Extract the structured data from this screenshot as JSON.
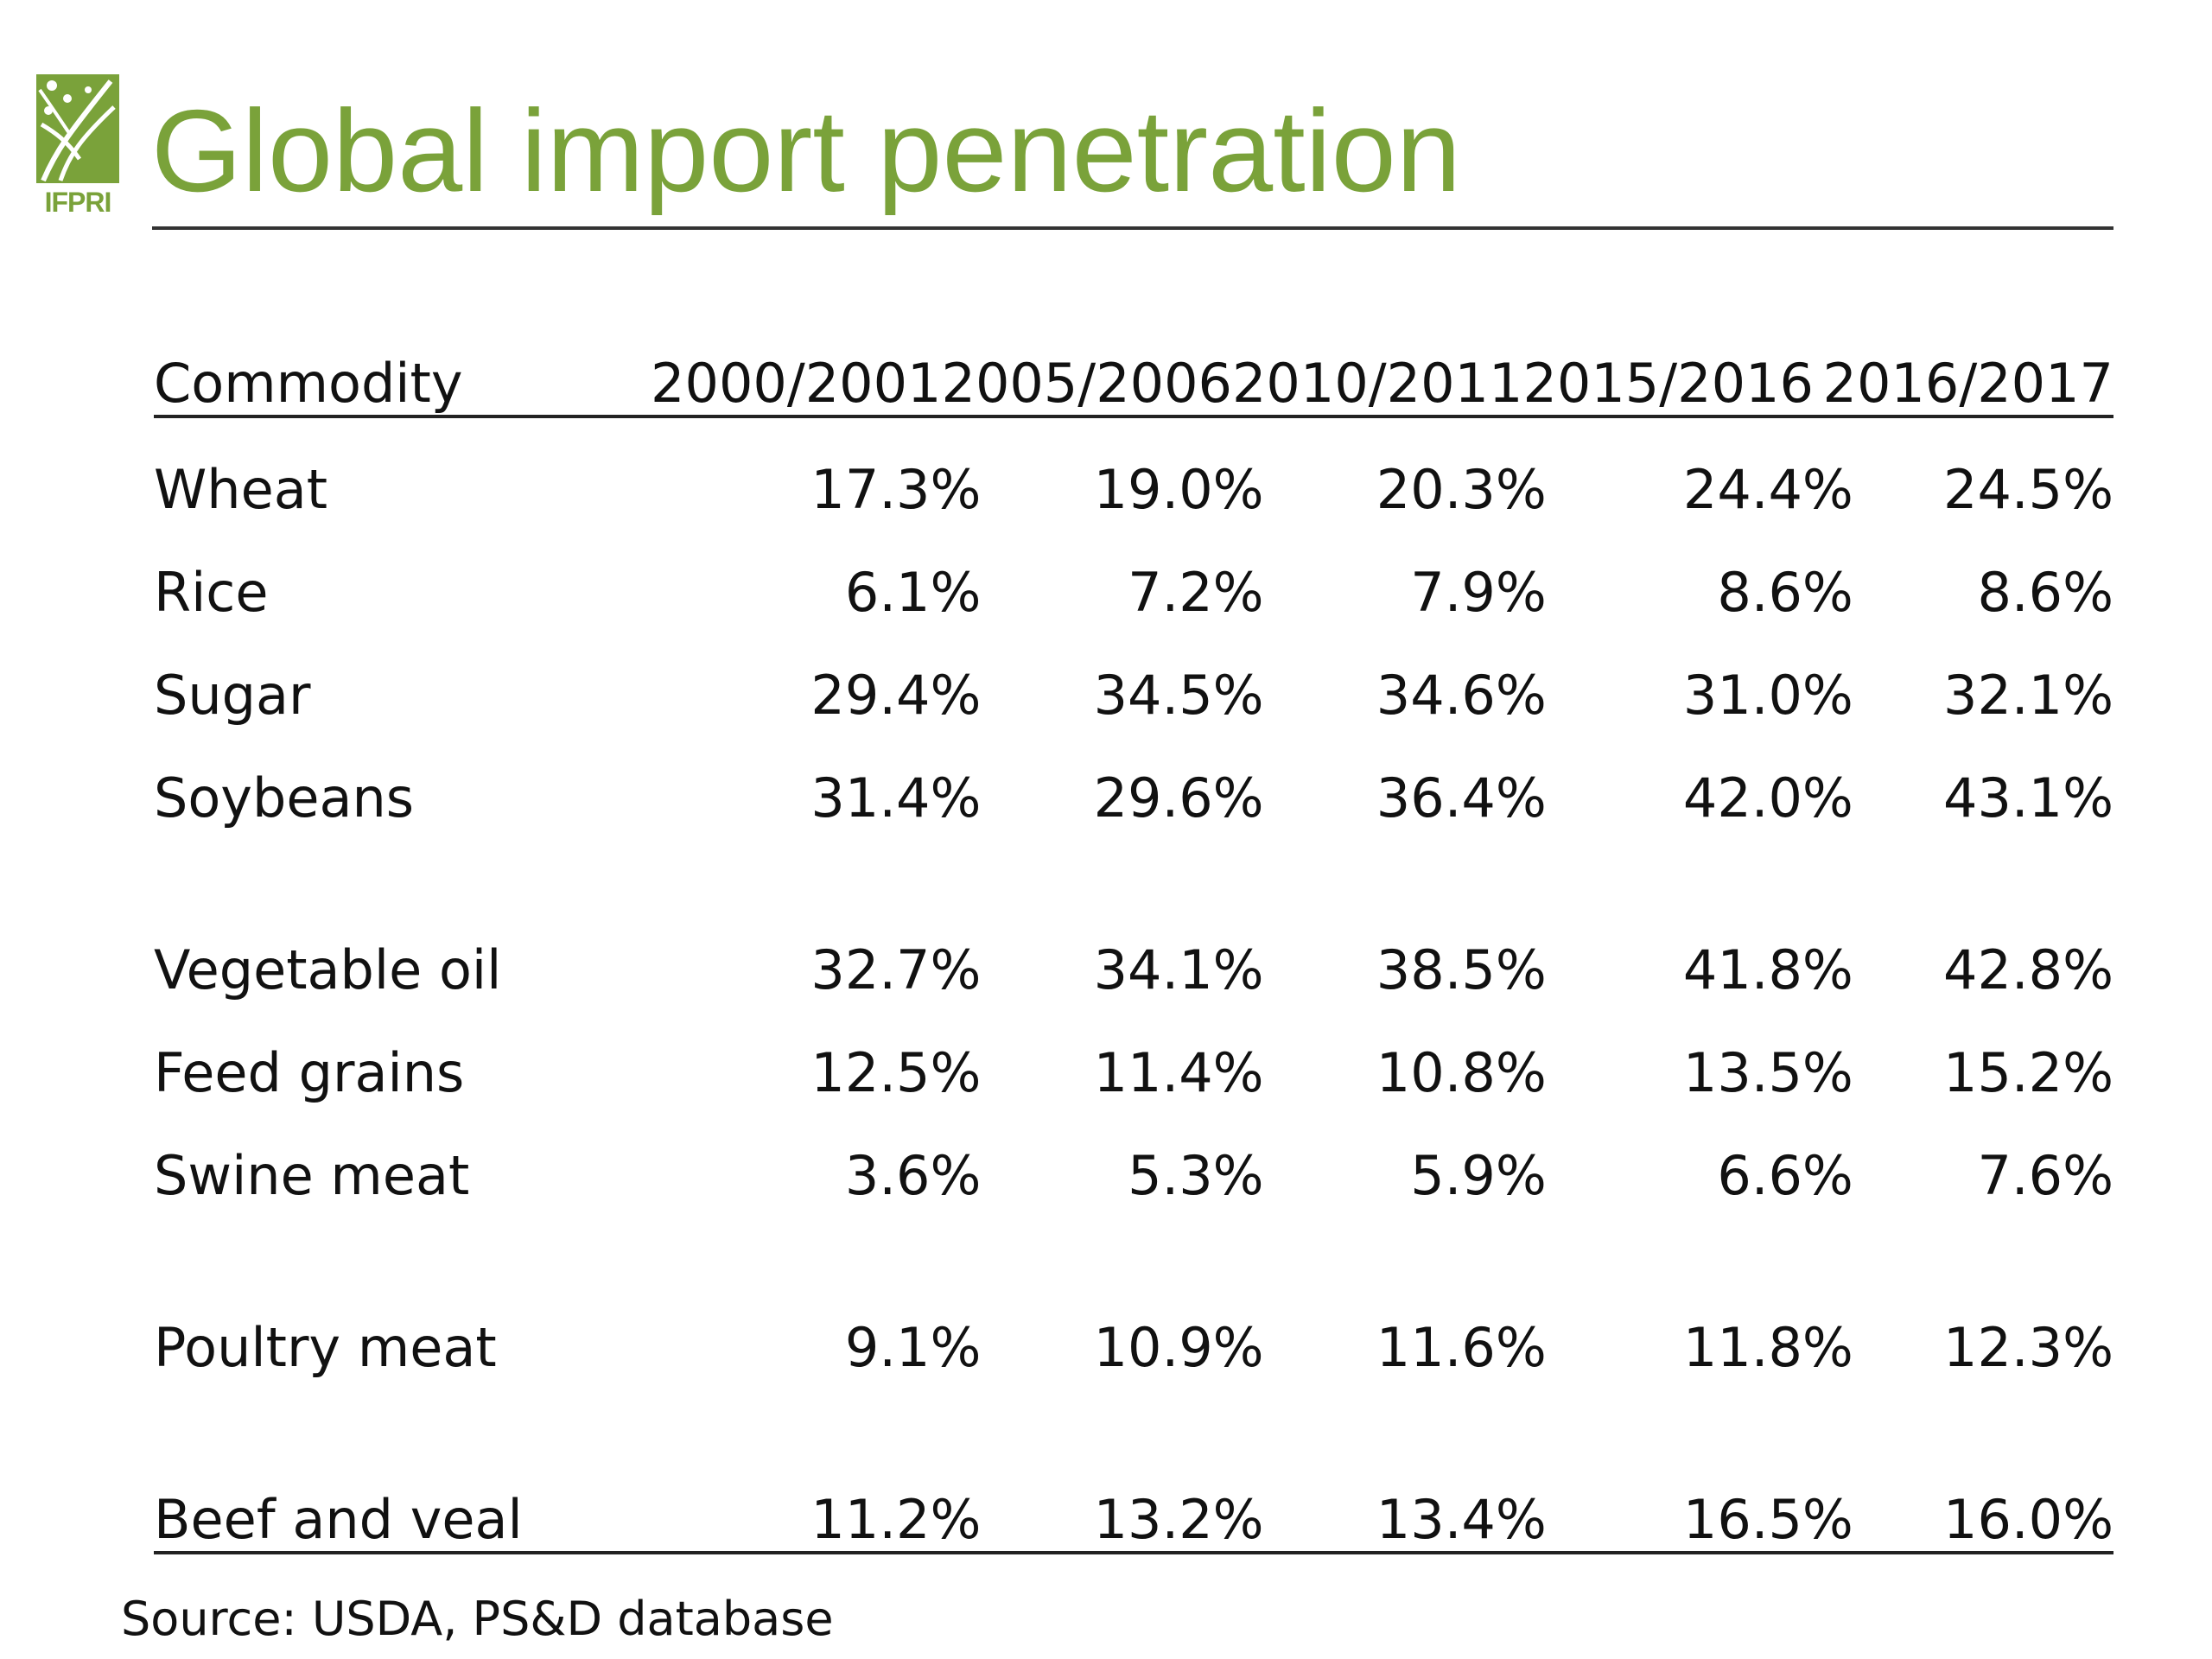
{
  "logo": {
    "text": "IFPRI",
    "color": "#7aa23a"
  },
  "title": "Global import penetration",
  "table": {
    "headers": [
      "Commodity",
      "2000/2001",
      "2005/2006",
      "2010/2011",
      "2015/2016",
      "2016/2017"
    ],
    "rows": [
      {
        "commodity": "Wheat",
        "values": [
          "17.3%",
          "19.0%",
          "20.3%",
          "24.4%",
          "24.5%"
        ]
      },
      {
        "commodity": "Rice",
        "values": [
          "6.1%",
          "7.2%",
          "7.9%",
          "8.6%",
          "8.6%"
        ]
      },
      {
        "commodity": "Sugar",
        "values": [
          "29.4%",
          "34.5%",
          "34.6%",
          "31.0%",
          "32.1%"
        ]
      },
      {
        "commodity": "Soybeans",
        "values": [
          "31.4%",
          "29.6%",
          "36.4%",
          "42.0%",
          "43.1%"
        ]
      },
      {
        "commodity": "Vegetable oil",
        "values": [
          "32.7%",
          "34.1%",
          "38.5%",
          "41.8%",
          "42.8%"
        ]
      },
      {
        "commodity": "Feed grains",
        "values": [
          "12.5%",
          "11.4%",
          "10.8%",
          "13.5%",
          "15.2%"
        ]
      },
      {
        "commodity": "Swine meat",
        "values": [
          "3.6%",
          "5.3%",
          "5.9%",
          "6.6%",
          "7.6%"
        ]
      },
      {
        "commodity": "Poultry meat",
        "values": [
          "9.1%",
          "10.9%",
          "11.6%",
          "11.8%",
          "12.3%"
        ]
      },
      {
        "commodity": "Beef and veal",
        "values": [
          "11.2%",
          "13.2%",
          "13.4%",
          "16.5%",
          "16.0%"
        ]
      }
    ]
  },
  "source": "Source: USDA, PS&D database"
}
